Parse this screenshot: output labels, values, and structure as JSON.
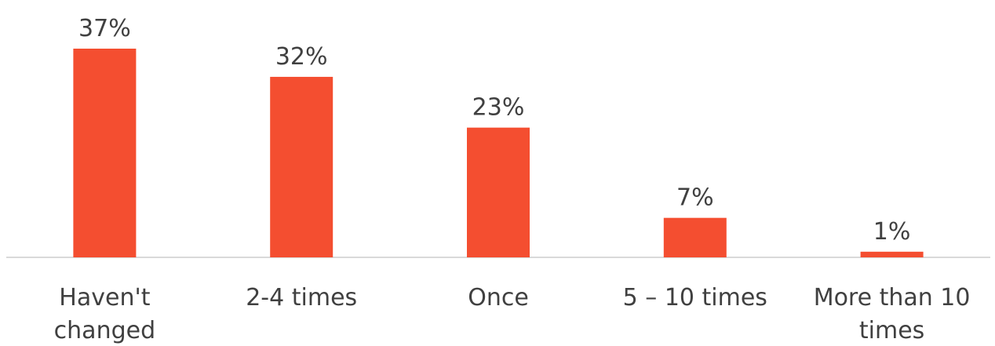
{
  "colors": {
    "bar": "#F44E30",
    "axis": "#D9D9D9",
    "text": "#404040"
  },
  "chart_data": {
    "type": "bar",
    "title": "",
    "xlabel": "",
    "ylabel": "",
    "categories": [
      [
        "Haven't",
        "changed"
      ],
      [
        "2-4 times"
      ],
      [
        "Once"
      ],
      [
        "5 – 10 times"
      ],
      [
        "More than 10",
        "times"
      ]
    ],
    "values": [
      37,
      32,
      23,
      7,
      1
    ],
    "data_labels": [
      "37%",
      "32%",
      "23%",
      "7%",
      "1%"
    ],
    "ylim": [
      0,
      37
    ],
    "grid": false,
    "legend": "none"
  }
}
